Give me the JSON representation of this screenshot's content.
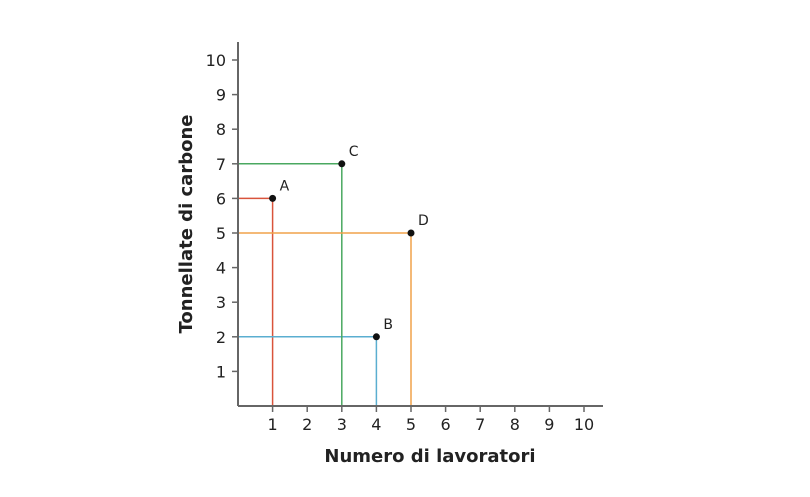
{
  "chart_data": {
    "type": "scatter",
    "title": "",
    "xlabel": "Numero di lavoratori",
    "ylabel": "Tonnellate di carbone",
    "xlim": [
      0,
      10.5
    ],
    "ylim": [
      0,
      10.5
    ],
    "xticks": [
      1,
      2,
      3,
      4,
      5,
      6,
      7,
      8,
      9,
      10
    ],
    "yticks": [
      1,
      2,
      3,
      4,
      5,
      6,
      7,
      8,
      9,
      10
    ],
    "grid": false,
    "legend": null,
    "points": [
      {
        "label": "A",
        "x": 1,
        "y": 6,
        "color": "#d9533b"
      },
      {
        "label": "B",
        "x": 4,
        "y": 2,
        "color": "#5aaed0"
      },
      {
        "label": "C",
        "x": 3,
        "y": 7,
        "color": "#4aa860"
      },
      {
        "label": "D",
        "x": 5,
        "y": 5,
        "color": "#f0a24a"
      }
    ]
  }
}
